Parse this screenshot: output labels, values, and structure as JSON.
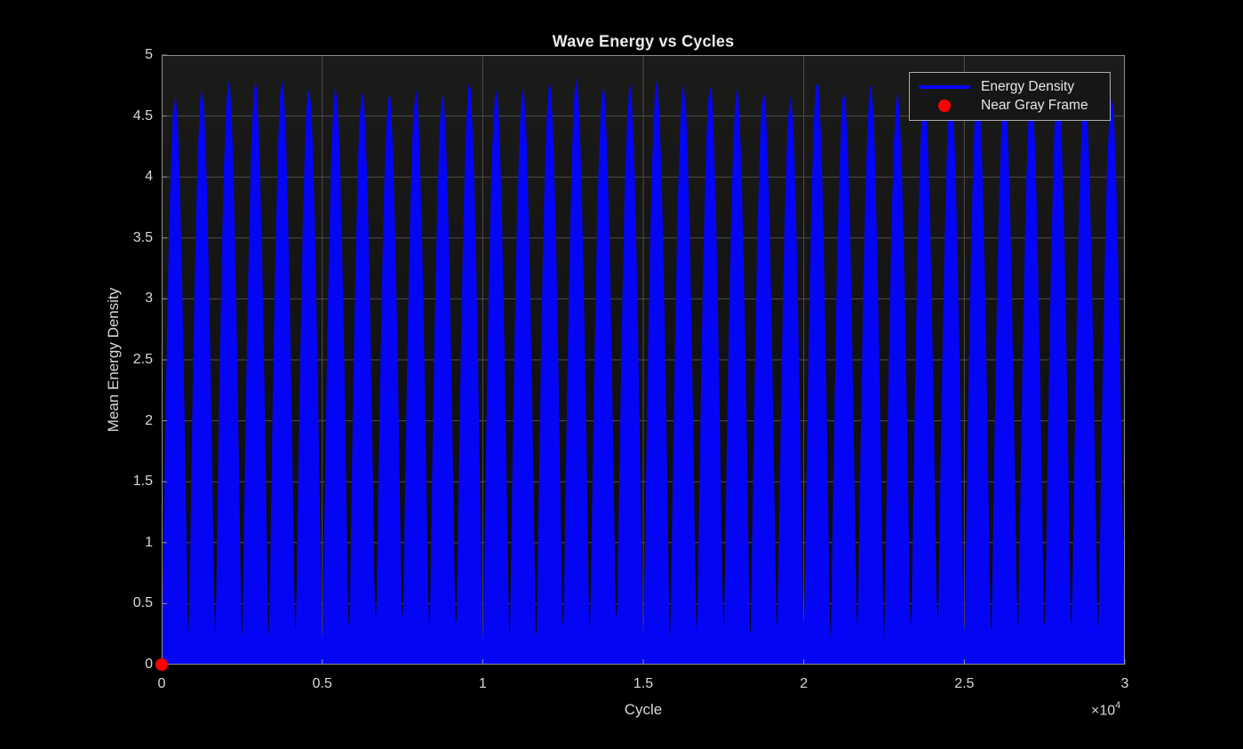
{
  "figure": {
    "background": "#000000"
  },
  "chart_data": {
    "type": "line",
    "title": "Wave Energy vs Cycles",
    "xlabel": "Cycle",
    "ylabel": "Mean Energy Density",
    "xlim": [
      0,
      30000
    ],
    "ylim": [
      0,
      5
    ],
    "x_tick_values": [
      0,
      5000,
      10000,
      15000,
      20000,
      25000,
      30000
    ],
    "x_tick_labels": [
      "0",
      "0.5",
      "1",
      "1.5",
      "2",
      "2.5",
      "3"
    ],
    "x_multiplier": "×10⁴",
    "x_multiplier_base": "×10",
    "x_multiplier_exp": "4",
    "y_tick_values": [
      0,
      0.5,
      1,
      1.5,
      2,
      2.5,
      3,
      3.5,
      4,
      4.5,
      5
    ],
    "y_tick_labels": [
      "0",
      "0.5",
      "1",
      "1.5",
      "2",
      "2.5",
      "3",
      "3.5",
      "4",
      "4.5",
      "5"
    ],
    "grid": true,
    "legend_position": "top-right",
    "series": [
      {
        "name": "Energy Density",
        "type": "line",
        "color": "#0505F5",
        "description": "dense high-frequency oscillation filling the area between ~0 and a periodic abs-sine envelope; appears as repeated vertical blue spikes",
        "envelope": {
          "shape": "abs-sine",
          "peak": 4.8,
          "num_peaks": 36,
          "min_floor": 0.28,
          "x_range": [
            0,
            30000
          ]
        }
      },
      {
        "name": "Near Gray Frame",
        "type": "scatter",
        "color": "#FF0000",
        "marker": "filled-circle",
        "marker_size_px": 14,
        "points": [
          [
            0,
            0
          ]
        ]
      }
    ],
    "colors": {
      "figure_background": "#000000",
      "plot_background_top": "#1b1b1a",
      "plot_background_bottom": "#0b0b0b",
      "grid": "#4d4d4d",
      "axis_box": "#8f8f8f",
      "tick_text": "#d9d9d9",
      "title_text": "#ececec",
      "legend_background": "#161616",
      "legend_border": "#adadad",
      "legend_text": "#e6e6e6",
      "line": "#0505F5",
      "marker": "#FF0000"
    }
  }
}
